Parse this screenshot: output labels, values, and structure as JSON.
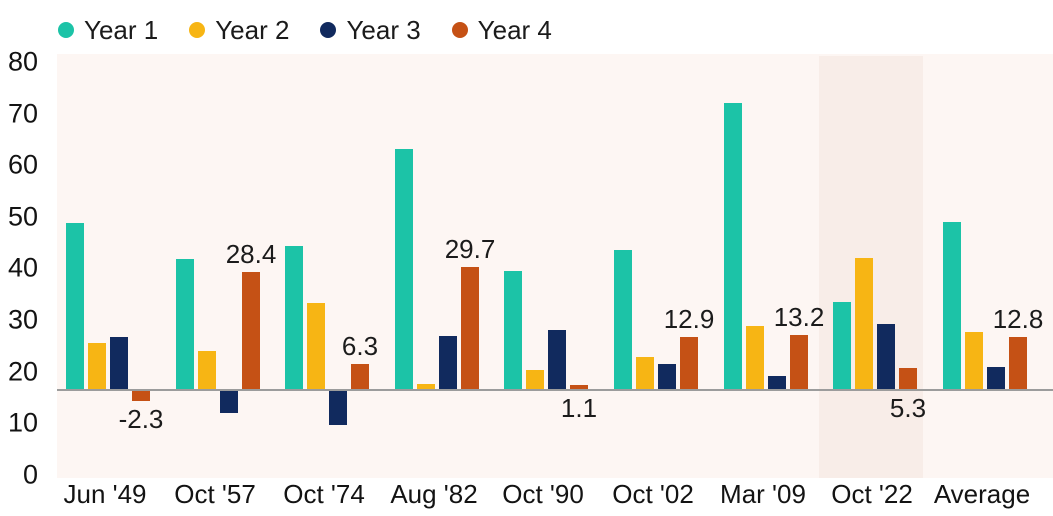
{
  "legend": {
    "items": [
      {
        "label": "Year 1",
        "color": "#1cc3a7"
      },
      {
        "label": "Year 2",
        "color": "#f7b514"
      },
      {
        "label": "Year 3",
        "color": "#112a5e"
      },
      {
        "label": "Year 4",
        "color": "#c55115"
      }
    ]
  },
  "chart_data": {
    "type": "bar",
    "title": "",
    "xlabel": "",
    "ylabel": "",
    "categories": [
      "Jun '49",
      "Oct '57",
      "Oct '74",
      "Aug '82",
      "Oct '90",
      "Oct '02",
      "Mar '09",
      "Oct '22",
      "Average"
    ],
    "series": [
      {
        "name": "Year 1",
        "color": "#1cc3a7",
        "values": [
          40.3,
          31.6,
          34.8,
          58.2,
          28.7,
          33.8,
          69.3,
          21.3,
          40.6
        ]
      },
      {
        "name": "Year 2",
        "color": "#f7b514",
        "values": [
          11.4,
          9.4,
          21.0,
          1.4,
          4.8,
          8.0,
          15.5,
          32.0,
          14.0
        ]
      },
      {
        "name": "Year 3",
        "color": "#112a5e",
        "values": [
          12.8,
          -5.3,
          -8.2,
          13.0,
          14.5,
          6.2,
          3.4,
          15.9,
          5.6
        ]
      },
      {
        "name": "Year 4",
        "color": "#c55115",
        "values": [
          -2.3,
          28.4,
          6.3,
          29.7,
          1.1,
          12.9,
          13.2,
          5.3,
          12.8
        ]
      }
    ],
    "data_labels": {
      "labeled_series": "Year 4",
      "values": [
        "-2.3",
        "28.4",
        "6.3",
        "29.7",
        "1.1",
        "12.9",
        "13.2",
        "5.3",
        "12.8"
      ],
      "placement": [
        "below",
        "above",
        "above",
        "above",
        "below",
        "above",
        "above",
        "below",
        "above"
      ]
    },
    "y_ticks": [
      "80",
      "70",
      "60",
      "50",
      "40",
      "30",
      "20",
      "10",
      "0"
    ],
    "ylim": [
      0,
      80
    ],
    "grid": false,
    "legend_position": "top-left",
    "highlighted_category": "Oct '22"
  },
  "colors": {
    "page_bg": "#ffffff",
    "plot_bg": "#fdf6f3",
    "highlight_bg": "#f8ede8",
    "baseline": "#9c9c9c",
    "text": "#1b1b1b"
  }
}
